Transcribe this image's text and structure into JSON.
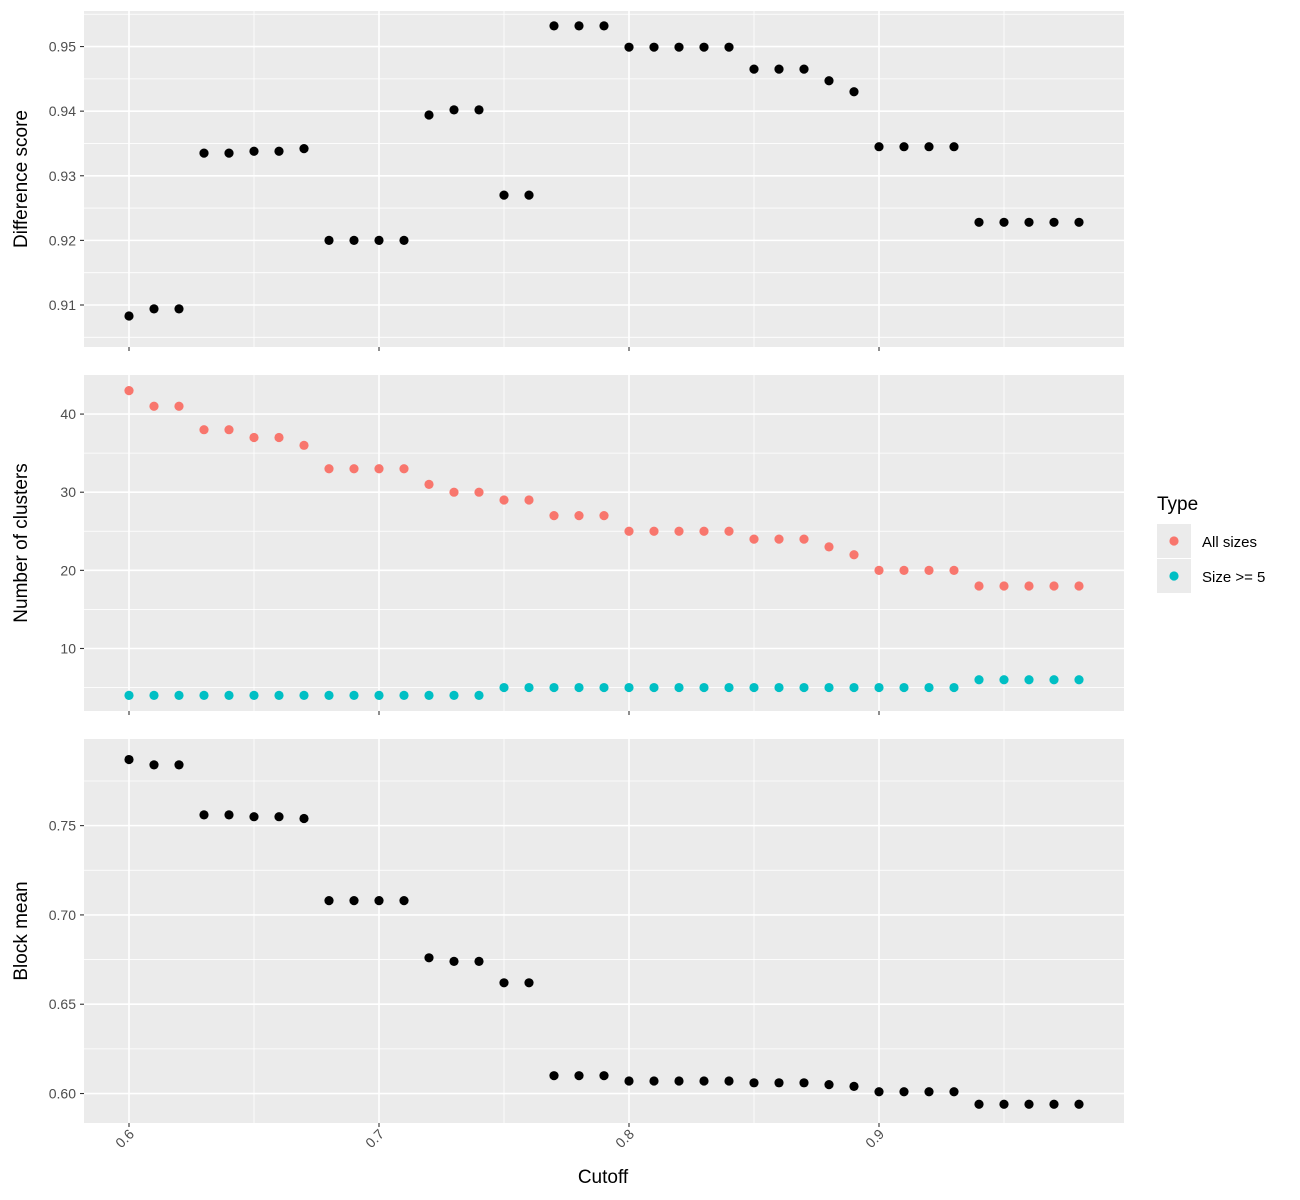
{
  "chart_data": {
    "type": "scatter",
    "xlabel": "Cutoff",
    "x_ticks": [
      0.6,
      0.7,
      0.8,
      0.9
    ],
    "x_tick_labels": [
      "0.6",
      "0.7",
      "0.8",
      "0.9"
    ],
    "xlim": [
      0.582,
      0.998
    ],
    "x": [
      0.6,
      0.61,
      0.62,
      0.63,
      0.64,
      0.65,
      0.66,
      0.67,
      0.68,
      0.69,
      0.7,
      0.71,
      0.72,
      0.73,
      0.74,
      0.75,
      0.76,
      0.77,
      0.78,
      0.79,
      0.8,
      0.81,
      0.82,
      0.83,
      0.84,
      0.85,
      0.86,
      0.87,
      0.88,
      0.89,
      0.9,
      0.91,
      0.92,
      0.93,
      0.94,
      0.95,
      0.96,
      0.97,
      0.98
    ],
    "grid": true,
    "panel_background": "#ebebeb",
    "grid_color": "#ffffff",
    "panels": [
      {
        "ylabel": "Difference score",
        "ylim": [
          0.9035,
          0.9555
        ],
        "y_ticks": [
          0.91,
          0.92,
          0.93,
          0.94,
          0.95
        ],
        "y_tick_labels": [
          "0.91",
          "0.92",
          "0.93",
          "0.94",
          "0.95"
        ],
        "series": [
          {
            "color": "#000000",
            "values": [
              0.9083,
              0.9094,
              0.9094,
              0.9335,
              0.9335,
              0.9338,
              0.9338,
              0.9342,
              0.92,
              0.92,
              0.92,
              0.92,
              0.9394,
              0.9402,
              0.9402,
              0.927,
              0.927,
              0.9532,
              0.9532,
              0.9532,
              0.9499,
              0.9499,
              0.9499,
              0.9499,
              0.9499,
              0.9465,
              0.9465,
              0.9465,
              0.9447,
              0.943,
              0.9345,
              0.9345,
              0.9345,
              0.9345,
              0.9228,
              0.9228,
              0.9228,
              0.9228,
              0.9228
            ]
          }
        ]
      },
      {
        "ylabel": "Number of clusters",
        "ylim": [
          2,
          45
        ],
        "y_ticks": [
          10,
          20,
          30,
          40
        ],
        "y_tick_labels": [
          "10",
          "20",
          "30",
          "40"
        ],
        "series": [
          {
            "name": "All sizes",
            "color": "#F8766D",
            "values": [
              43,
              41,
              41,
              38,
              38,
              37,
              37,
              36,
              33,
              33,
              33,
              33,
              31,
              30,
              30,
              29,
              29,
              27,
              27,
              27,
              25,
              25,
              25,
              25,
              25,
              24,
              24,
              24,
              23,
              22,
              20,
              20,
              20,
              20,
              18,
              18,
              18,
              18,
              18
            ]
          },
          {
            "name": "Size >= 5",
            "color": "#00BFC4",
            "values": [
              4,
              4,
              4,
              4,
              4,
              4,
              4,
              4,
              4,
              4,
              4,
              4,
              4,
              4,
              4,
              5,
              5,
              5,
              5,
              5,
              5,
              5,
              5,
              5,
              5,
              5,
              5,
              5,
              5,
              5,
              5,
              5,
              5,
              5,
              6,
              6,
              6,
              6,
              6
            ]
          }
        ]
      },
      {
        "ylabel": "Block mean",
        "ylim": [
          0.5835,
          0.7985
        ],
        "y_ticks": [
          0.6,
          0.65,
          0.7,
          0.75
        ],
        "y_tick_labels": [
          "0.60",
          "0.65",
          "0.70",
          "0.75"
        ],
        "series": [
          {
            "color": "#000000",
            "values": [
              0.787,
              0.784,
              0.784,
              0.756,
              0.756,
              0.755,
              0.755,
              0.754,
              0.708,
              0.708,
              0.708,
              0.708,
              0.676,
              0.674,
              0.674,
              0.662,
              0.662,
              0.61,
              0.61,
              0.61,
              0.607,
              0.607,
              0.607,
              0.607,
              0.607,
              0.606,
              0.606,
              0.606,
              0.605,
              0.604,
              0.601,
              0.601,
              0.601,
              0.601,
              0.594,
              0.594,
              0.594,
              0.594,
              0.594
            ]
          }
        ]
      }
    ],
    "legend": {
      "title": "Type",
      "position": "right",
      "items": [
        {
          "label": "All sizes",
          "color": "#F8766D"
        },
        {
          "label": "Size >= 5",
          "color": "#00BFC4"
        }
      ]
    }
  }
}
